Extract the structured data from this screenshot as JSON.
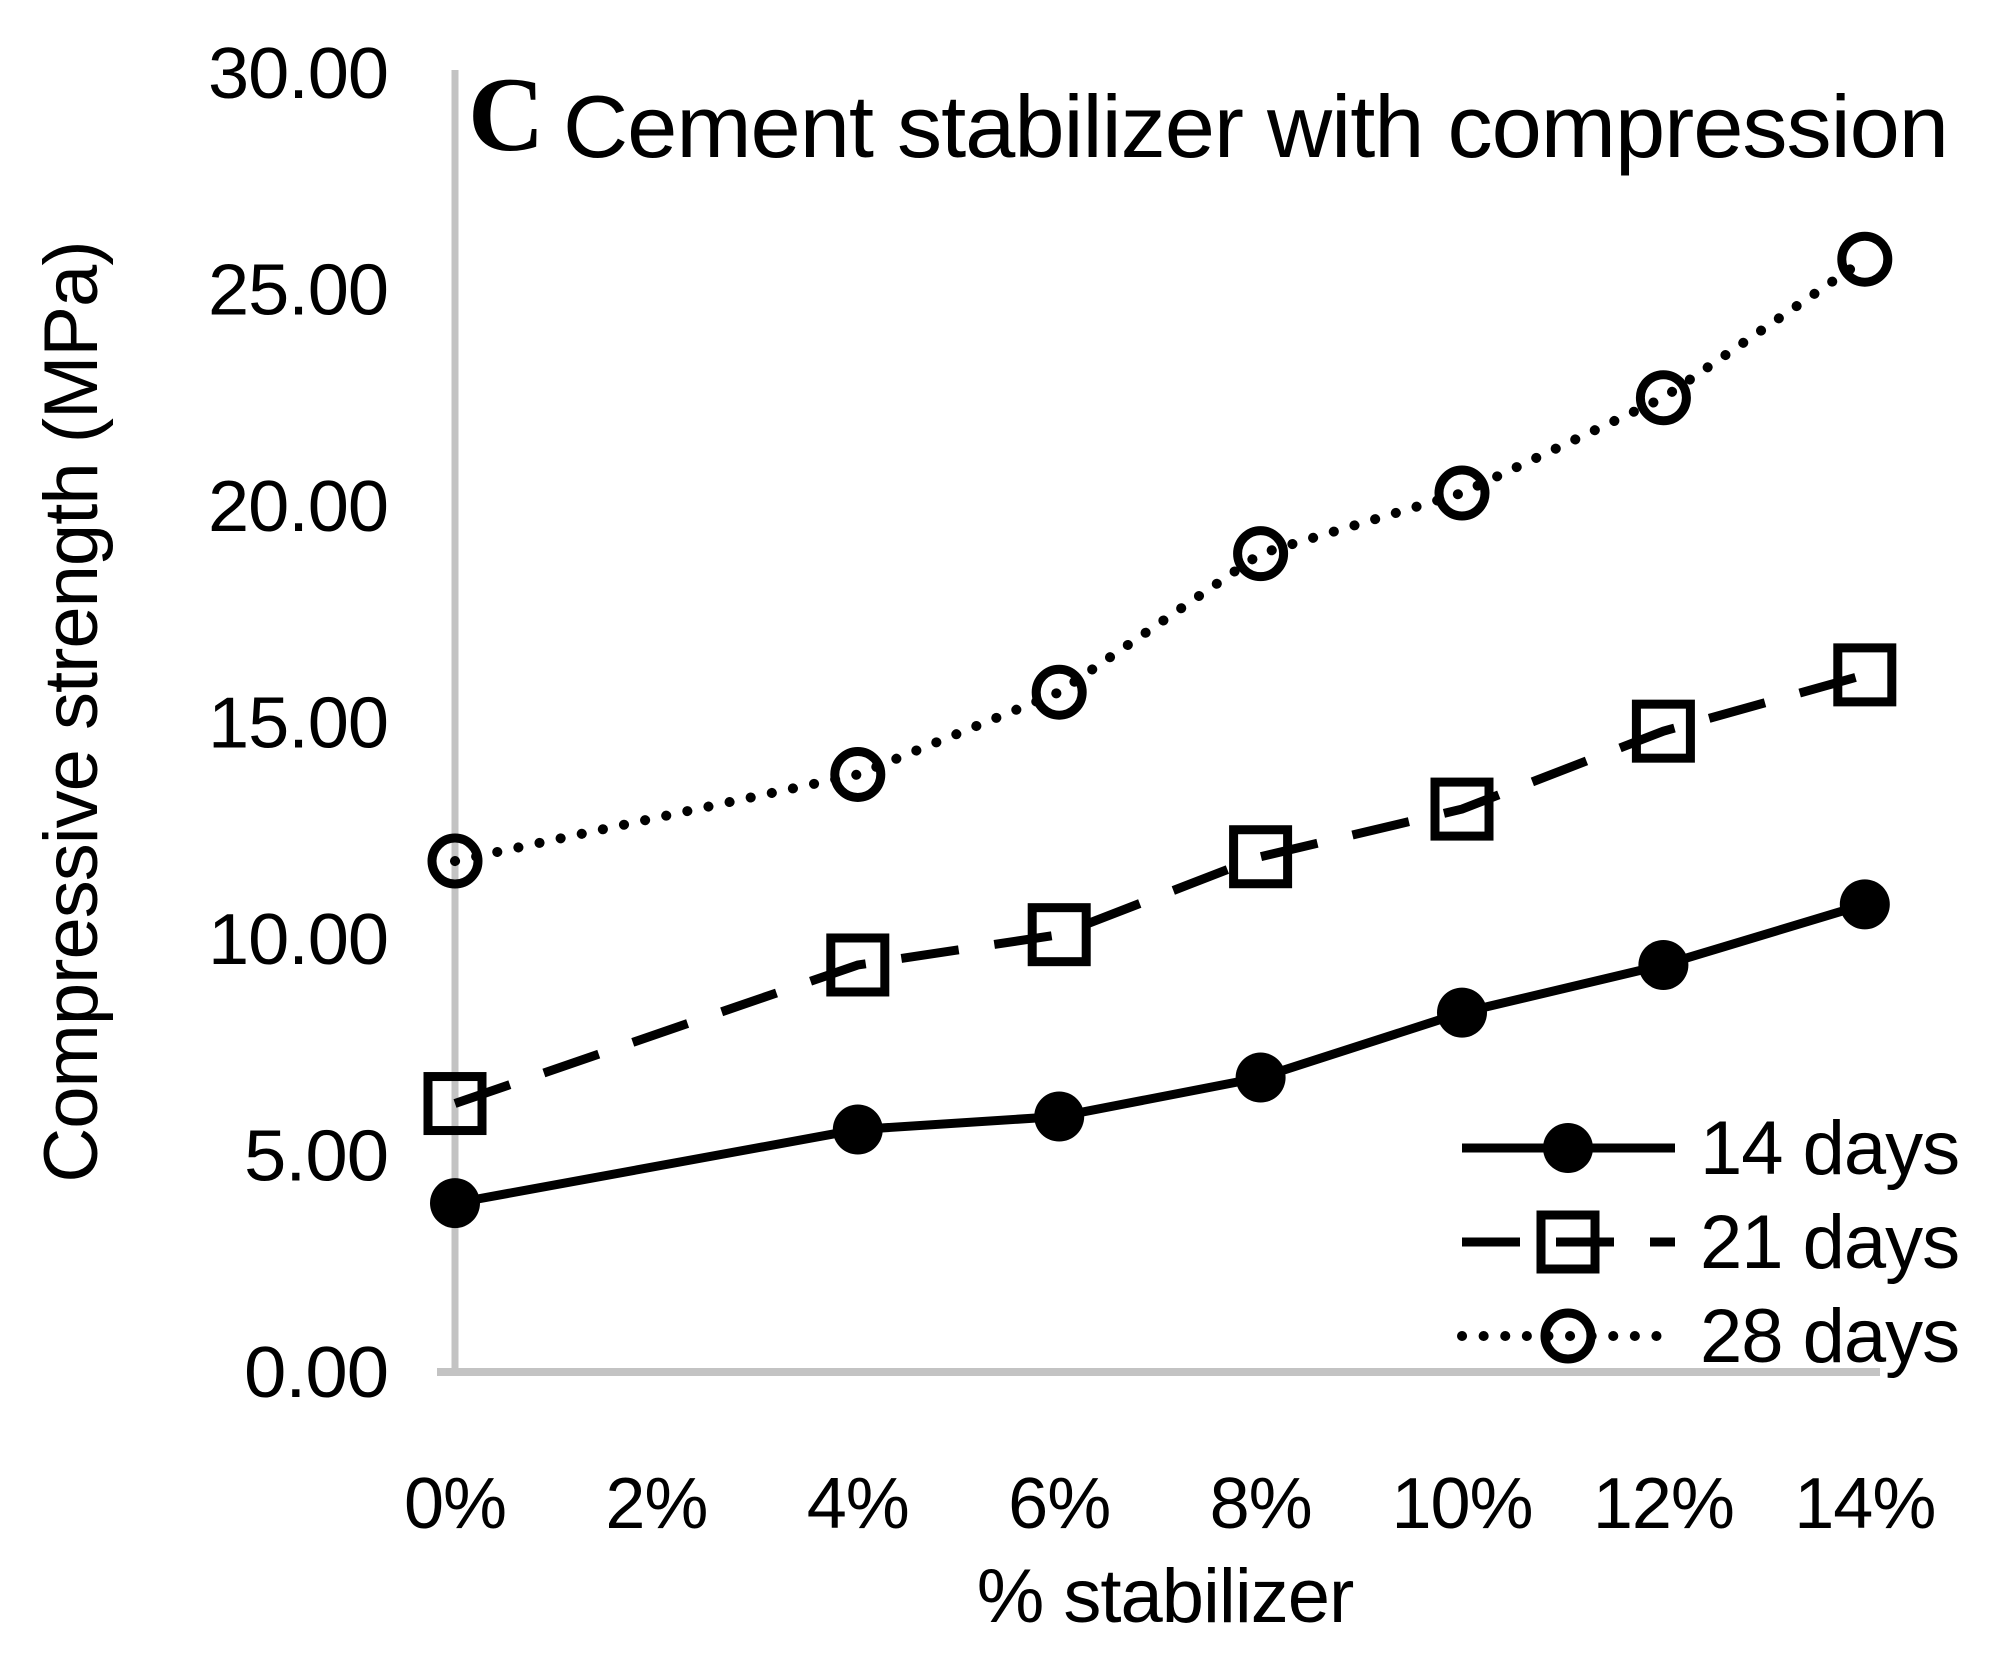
{
  "title": {
    "panel_label": "C",
    "text": "Cement stabilizer with compression"
  },
  "colors": {
    "series": "#000000",
    "axis_line": "#c3c3c3",
    "text": "#000000",
    "background": "#ffffff"
  },
  "chart_data": {
    "type": "line",
    "panel_label": "C",
    "title": "Cement stabilizer with compression",
    "xlabel": "% stabilizer",
    "ylabel": "Compressive strength (MPa)",
    "x": [
      0,
      4,
      6,
      8,
      10,
      12,
      14
    ],
    "x_ticks": [
      "0%",
      "2%",
      "4%",
      "6%",
      "8%",
      "10%",
      "12%",
      "14%"
    ],
    "y_ticks": [
      "30.00",
      "25.00",
      "20.00",
      "15.00",
      "10.00",
      "5.00",
      "0.00"
    ],
    "ylim": [
      0,
      30
    ],
    "xlim_pct": [
      0,
      14
    ],
    "grid": false,
    "legend_position": "lower right",
    "series": [
      {
        "name": "14 days",
        "line": "solid",
        "marker": "filled-circle",
        "values": [
          3.9,
          5.6,
          5.9,
          6.8,
          8.3,
          9.4,
          10.8
        ]
      },
      {
        "name": "21 days",
        "line": "dashed",
        "marker": "open-square",
        "values": [
          6.2,
          9.4,
          10.1,
          11.9,
          13.0,
          14.8,
          16.1
        ]
      },
      {
        "name": "28 days",
        "line": "dotted",
        "marker": "open-circle",
        "values": [
          11.8,
          13.8,
          15.7,
          18.9,
          20.3,
          22.5,
          25.7
        ]
      }
    ]
  }
}
